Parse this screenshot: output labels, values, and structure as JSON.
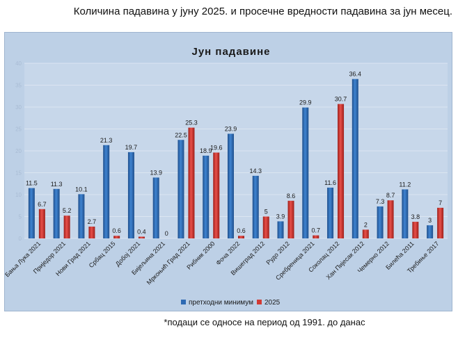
{
  "heading": "Количина падавина у јуну 2025. и просечне вредности падавина за јун месец.",
  "footnote": "*подаци се односе на период од 1991. до данас",
  "colors": {
    "series_1": "#2e6ab3",
    "series_2": "#d23a33",
    "plot_bg": "#c9d8ea",
    "grid": "#d9e3ef"
  },
  "chart_data": {
    "type": "bar",
    "title": "Јун падавине",
    "xlabel": "",
    "ylabel": "",
    "ylim": [
      0,
      40
    ],
    "yticks": [
      0,
      5,
      10,
      15,
      20,
      25,
      30,
      35,
      40
    ],
    "grid": true,
    "legend": "bottom",
    "categories": [
      "Бања Лука 2021",
      "Приједор 2021",
      "Нови Град 2021",
      "Србац 2015",
      "Добој 2021",
      "Бијељина 2021",
      "Мркоњић Град 2021",
      "Рибник 2000",
      "Фоча 2022",
      "Вишеград 2012",
      "Рудо 2012",
      "Сребреница 2021",
      "Соколац 2012",
      "Хан Пијесак 2012",
      "Чемерно 2012",
      "Билећа 2011",
      "Требиње 2017"
    ],
    "series": [
      {
        "name": "претходни минимум",
        "values": [
          11.5,
          11.3,
          10.1,
          21.3,
          19.7,
          13.9,
          22.5,
          18.9,
          23.9,
          14.3,
          3.9,
          29.9,
          11.6,
          36.4,
          7.3,
          11.2,
          3
        ]
      },
      {
        "name": "2025",
        "values": [
          6.7,
          5.2,
          2.7,
          0.6,
          0.4,
          0,
          25.3,
          19.6,
          0.6,
          5,
          8.6,
          0.7,
          30.7,
          2,
          8.7,
          3.8,
          7
        ]
      }
    ],
    "data_labels": [
      [
        "11.5",
        "11.3",
        "10.1",
        "21.3",
        "19.7",
        "13.9",
        "22.5",
        "18.9",
        "23.9",
        "14.3",
        "3.9",
        "29.9",
        "11.6",
        "36.4",
        "7.3",
        "11.2",
        "3"
      ],
      [
        "6.7",
        "5.2",
        "2.7",
        "0.6",
        "0.4",
        "0",
        "25.3",
        "19.6",
        "0.6",
        "5",
        "8.6",
        "0.7",
        "30.7",
        "2",
        "8.7",
        "3.8",
        "7"
      ]
    ]
  }
}
